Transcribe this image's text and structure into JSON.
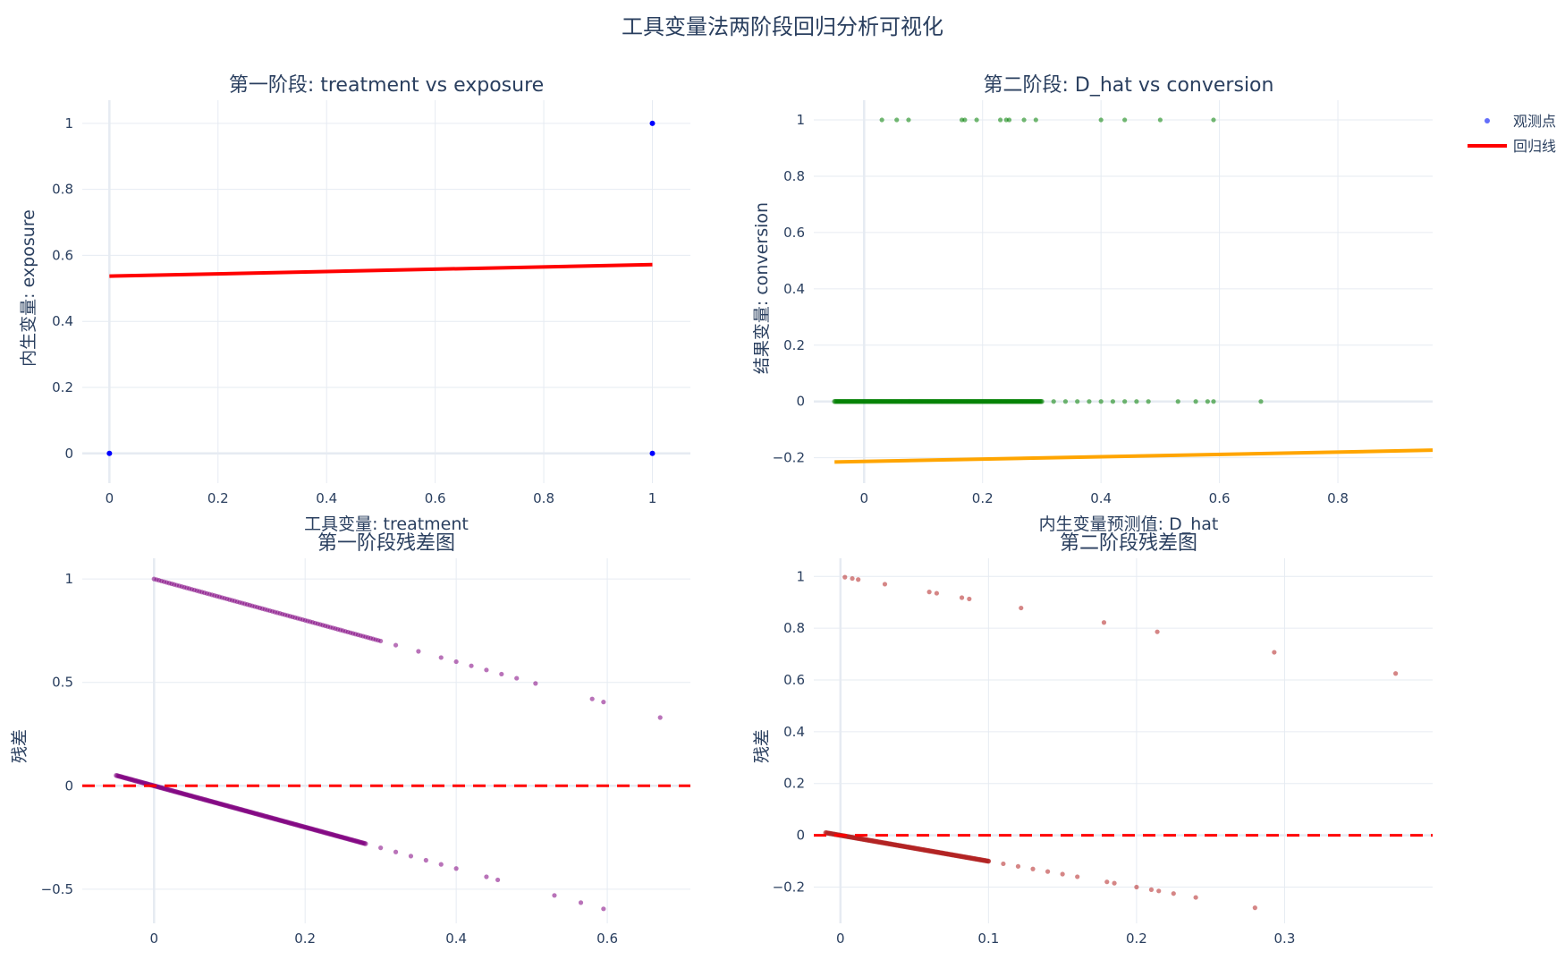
{
  "main_title": "工具变量法两阶段回归分析可视化",
  "legend": {
    "items": [
      {
        "label": "观测点",
        "kind": "marker",
        "color": "#636efa"
      },
      {
        "label": "回归线",
        "kind": "line",
        "color": "#ff0000"
      }
    ]
  },
  "chart_data": [
    {
      "type": "scatter",
      "title": "第一阶段: treatment vs exposure",
      "xlabel": "工具变量: treatment",
      "ylabel": "内生变量: exposure",
      "xlim": [
        -0.05,
        1.07
      ],
      "ylim": [
        -0.09,
        1.07
      ],
      "xticks": [
        0,
        0.2,
        0.4,
        0.6,
        0.8,
        1
      ],
      "yticks": [
        0,
        0.2,
        0.4,
        0.6,
        0.8,
        1
      ],
      "xtick_labels": [
        "0",
        "0.2",
        "0.4",
        "0.6",
        "0.8",
        "1"
      ],
      "ytick_labels": [
        "0",
        "0.2",
        "0.4",
        "0.6",
        "0.8",
        "1"
      ],
      "points": {
        "color": "#0000ff",
        "x": [
          0,
          1,
          1
        ],
        "y": [
          0,
          0,
          1
        ]
      },
      "line": {
        "color": "#ff0000",
        "x": [
          0,
          1
        ],
        "y": [
          0.537,
          0.572
        ]
      }
    },
    {
      "type": "scatter",
      "title": "第二阶段: D_hat vs conversion",
      "xlabel": "内生变量预测值: D_hat",
      "ylabel": "结果变量: conversion",
      "xlim": [
        -0.085,
        0.96
      ],
      "ylim": [
        -0.29,
        1.07
      ],
      "xticks": [
        0,
        0.2,
        0.4,
        0.6,
        0.8
      ],
      "yticks": [
        -0.2,
        0,
        0.2,
        0.4,
        0.6,
        0.8,
        1
      ],
      "xtick_labels": [
        "0",
        "0.2",
        "0.4",
        "0.6",
        "0.8"
      ],
      "ytick_labels": [
        "−0.2",
        "0",
        "0.2",
        "0.4",
        "0.6",
        "0.8",
        "1"
      ],
      "points": {
        "color": "#008000",
        "dense": {
          "x_from": -0.05,
          "x_to": 0.3,
          "y": 0
        },
        "x": [
          0.32,
          0.34,
          0.36,
          0.38,
          0.4,
          0.42,
          0.44,
          0.46,
          0.48,
          0.53,
          0.56,
          0.58,
          0.59,
          0.67,
          0.03,
          0.055,
          0.075,
          0.165,
          0.17,
          0.19,
          0.23,
          0.24,
          0.245,
          0.27,
          0.29,
          0.4,
          0.44,
          0.5,
          0.59
        ],
        "y": [
          0,
          0,
          0,
          0,
          0,
          0,
          0,
          0,
          0,
          0,
          0,
          0,
          0,
          0,
          1,
          1,
          1,
          1,
          1,
          1,
          1,
          1,
          1,
          1,
          1,
          1,
          1,
          1,
          1
        ]
      },
      "line": {
        "color": "#ffa500",
        "x": [
          -0.05,
          0.96
        ],
        "y": [
          -0.215,
          -0.173
        ]
      }
    },
    {
      "type": "scatter",
      "title": "第一阶段残差图",
      "xlabel": "",
      "ylabel": "残差",
      "xlim": [
        -0.095,
        0.71
      ],
      "ylim": [
        -0.665,
        1.1
      ],
      "xticks": [
        0,
        0.2,
        0.4,
        0.6
      ],
      "yticks": [
        -0.5,
        0,
        0.5,
        1
      ],
      "xtick_labels": [
        "0",
        "0.2",
        "0.4",
        "0.6"
      ],
      "ytick_labels": [
        "−0.5",
        "0",
        "0.5",
        "1"
      ],
      "points": {
        "color": "#800080",
        "dense_lower": {
          "x_from": -0.05,
          "x_to": 0.28
        },
        "dense_upper": {
          "x_from": 0.0,
          "x_to": 0.3
        },
        "x": [
          0.3,
          0.32,
          0.34,
          0.36,
          0.38,
          0.4,
          0.44,
          0.455,
          0.53,
          0.565,
          0.595,
          0.32,
          0.35,
          0.38,
          0.4,
          0.42,
          0.44,
          0.46,
          0.48,
          0.505,
          0.58,
          0.595,
          0.67
        ],
        "y": [
          -0.3,
          -0.32,
          -0.34,
          -0.36,
          -0.38,
          -0.4,
          -0.44,
          -0.455,
          -0.53,
          -0.565,
          -0.595,
          0.68,
          0.65,
          0.62,
          0.6,
          0.58,
          0.56,
          0.54,
          0.52,
          0.495,
          0.42,
          0.405,
          0.33
        ]
      },
      "reference_line": {
        "color": "#ff0000",
        "y": 0,
        "style": "dashed"
      }
    },
    {
      "type": "scatter",
      "title": "第二阶段残差图",
      "xlabel": "",
      "ylabel": "残差",
      "xlim": [
        -0.018,
        0.4
      ],
      "ylim": [
        -0.34,
        1.07
      ],
      "xticks": [
        0,
        0.1,
        0.2,
        0.3
      ],
      "yticks": [
        -0.2,
        0,
        0.2,
        0.4,
        0.6,
        0.8,
        1
      ],
      "xtick_labels": [
        "0",
        "0.1",
        "0.2",
        "0.3"
      ],
      "ytick_labels": [
        "−0.2",
        "0",
        "0.2",
        "0.4",
        "0.6",
        "0.8",
        "1"
      ],
      "points": {
        "color": "#b22222",
        "dense_lower": {
          "x_from": -0.01,
          "x_to": 0.1
        },
        "x": [
          0.1,
          0.11,
          0.12,
          0.13,
          0.14,
          0.15,
          0.16,
          0.18,
          0.185,
          0.2,
          0.21,
          0.215,
          0.225,
          0.24,
          0.28,
          0.003,
          0.008,
          0.012,
          0.03,
          0.06,
          0.065,
          0.082,
          0.087,
          0.122,
          0.178,
          0.214,
          0.293,
          0.375
        ],
        "y": [
          -0.1,
          -0.11,
          -0.12,
          -0.13,
          -0.14,
          -0.15,
          -0.16,
          -0.18,
          -0.185,
          -0.2,
          -0.21,
          -0.215,
          -0.225,
          -0.24,
          -0.28,
          0.997,
          0.992,
          0.988,
          0.97,
          0.94,
          0.935,
          0.918,
          0.913,
          0.878,
          0.822,
          0.786,
          0.707,
          0.625
        ]
      },
      "reference_line": {
        "color": "#ff0000",
        "y": 0,
        "style": "dashed"
      }
    }
  ]
}
